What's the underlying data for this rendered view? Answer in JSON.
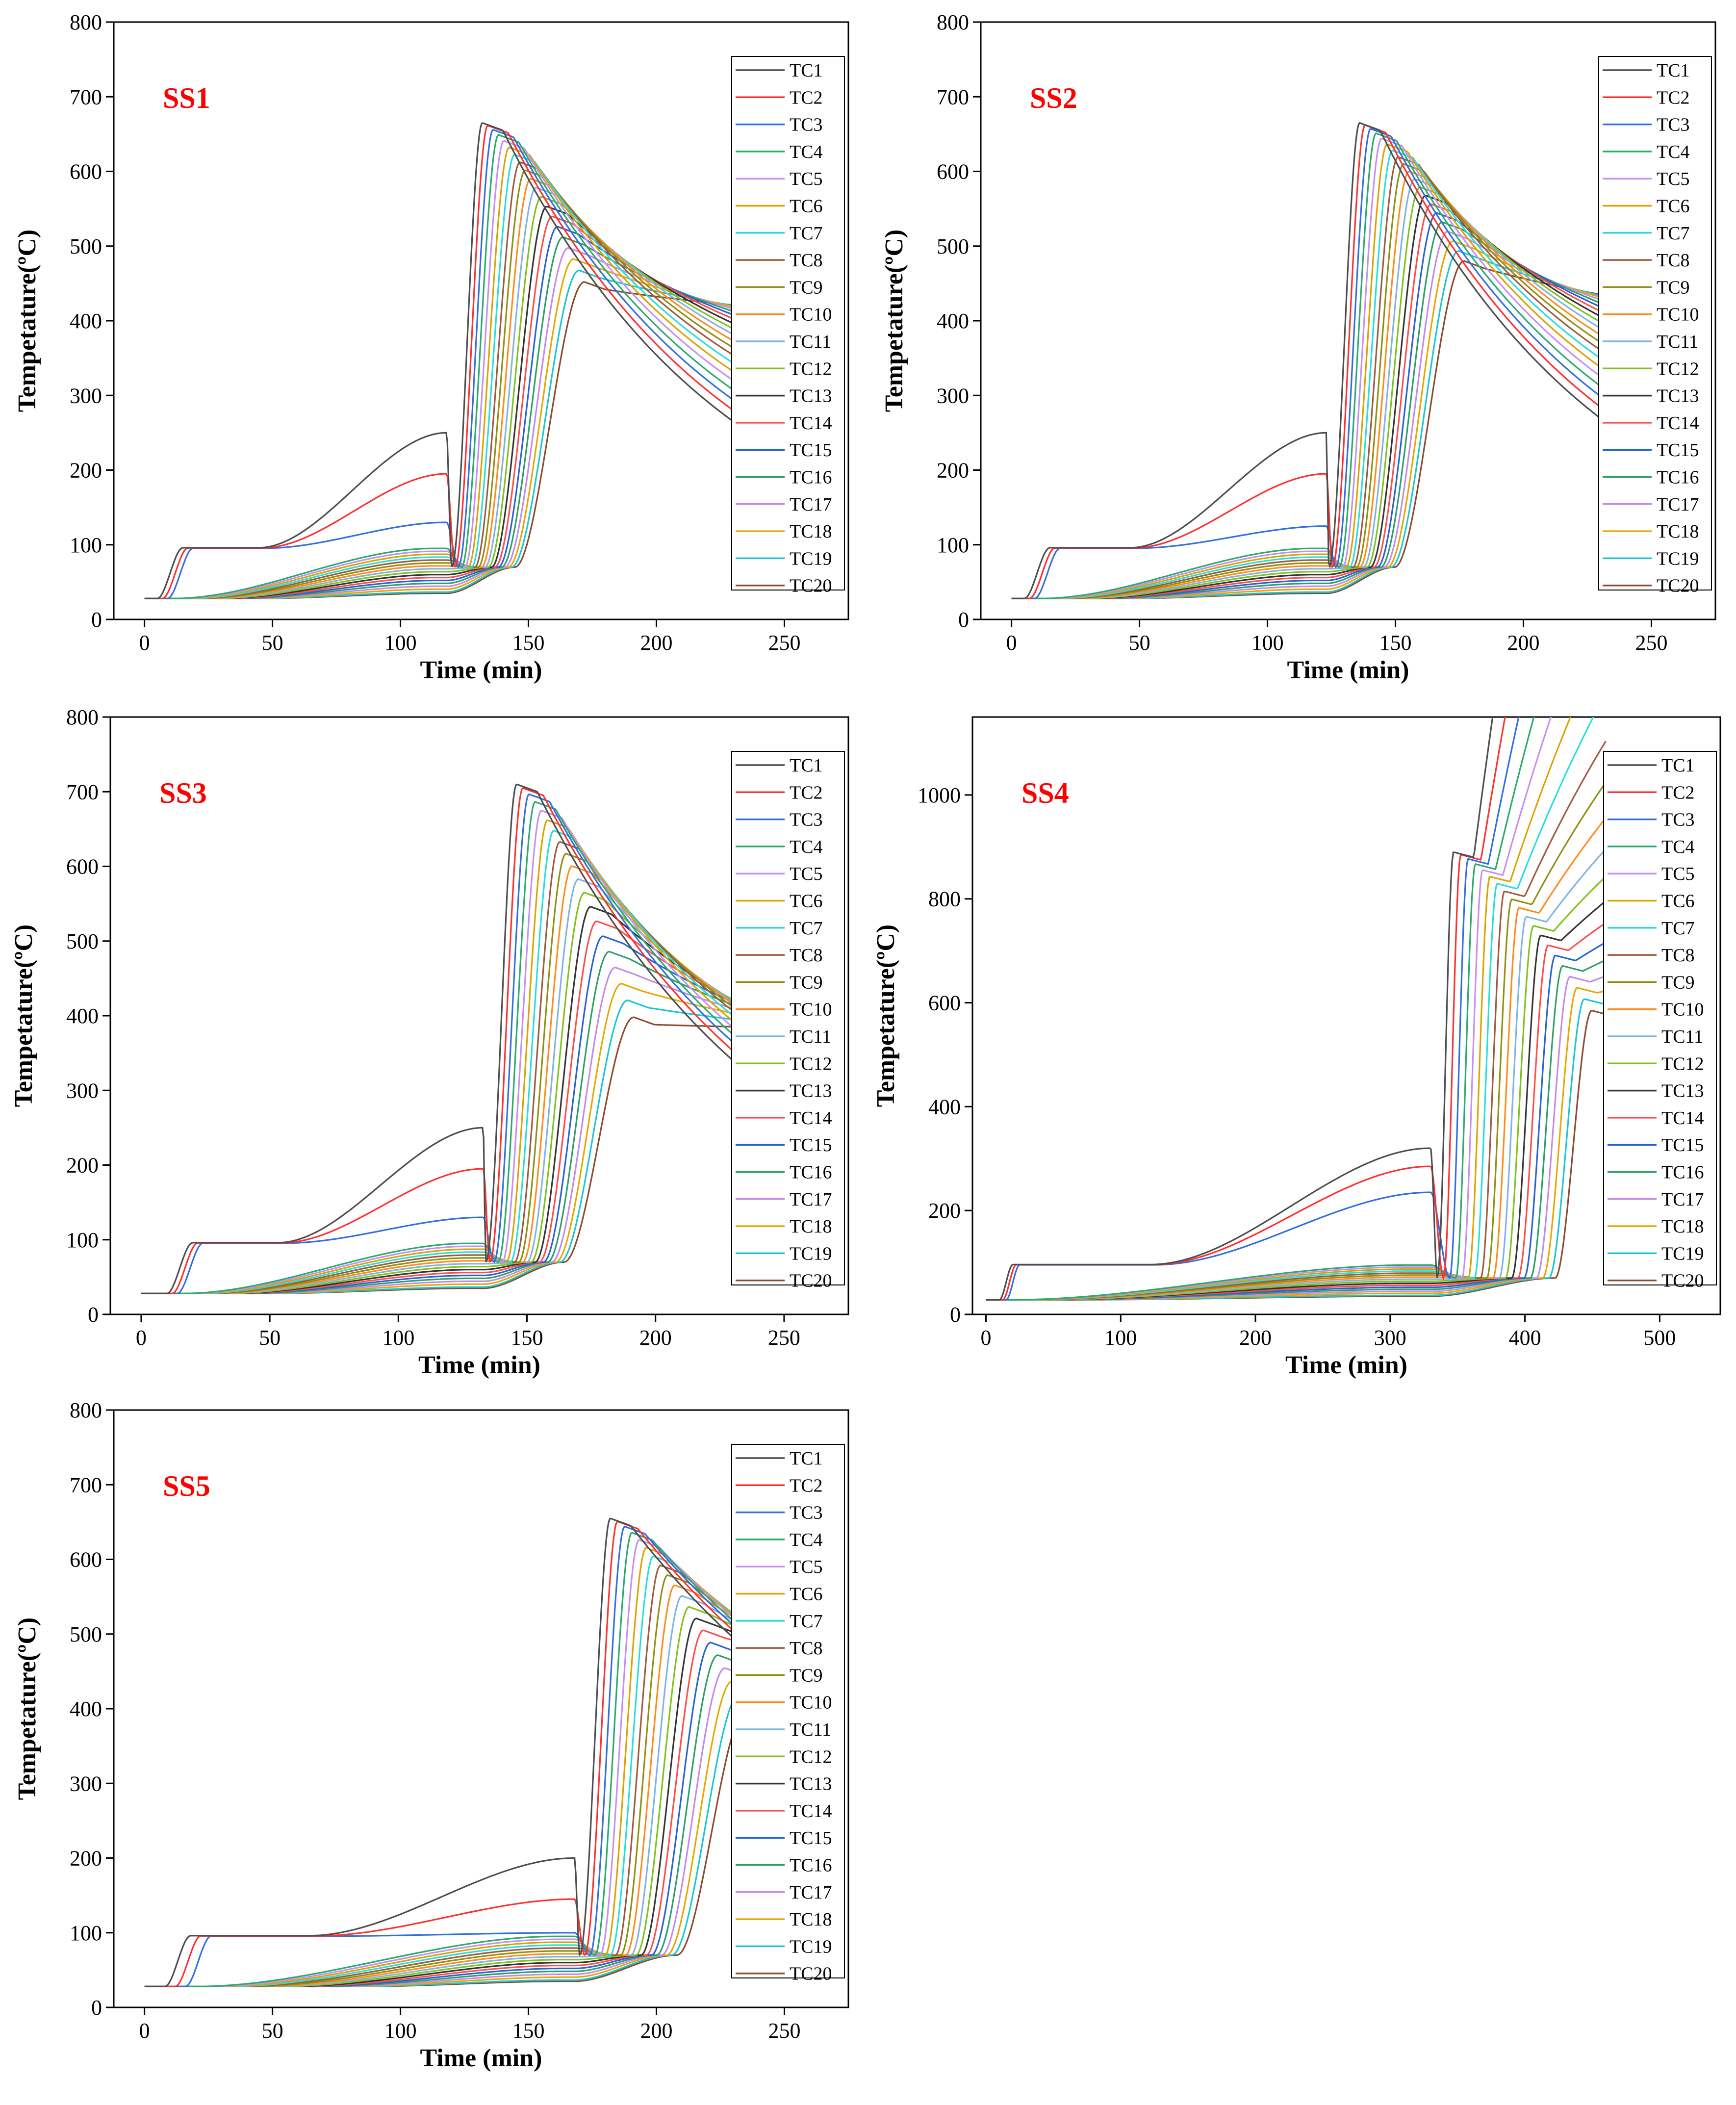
{
  "palette": [
    "#4d4d4d",
    "#ff3030",
    "#2f6fe0",
    "#2bab6b",
    "#c78ff0",
    "#d9a400",
    "#27dede",
    "#9e5a3d",
    "#8f8f10",
    "#ff8c1a",
    "#7fb3e6",
    "#7fc21a",
    "#333333",
    "#ff4d4d",
    "#2463d6",
    "#2f9e66",
    "#c48ae8",
    "#e6a800",
    "#19c6d6",
    "#8c4a2e"
  ],
  "series_names": [
    "TC1",
    "TC2",
    "TC3",
    "TC4",
    "TC5",
    "TC6",
    "TC7",
    "TC8",
    "TC9",
    "TC10",
    "TC11",
    "TC12",
    "TC13",
    "TC14",
    "TC15",
    "TC16",
    "TC17",
    "TC18",
    "TC19",
    "TC20"
  ],
  "chart_data": [
    {
      "id": "SS1",
      "type": "line",
      "panel_label": "SS1",
      "xlabel": "Time (min)",
      "ylabel": "Tempetature(ºC)",
      "xlim": [
        -12,
        275
      ],
      "ylim": [
        0,
        800
      ],
      "xticks": [
        0,
        50,
        100,
        150,
        200,
        250
      ],
      "yticks": [
        0,
        100,
        200,
        300,
        400,
        500,
        600,
        700,
        800
      ],
      "x_end": 232,
      "params": {
        "t_start": 5,
        "t_start_step": 2,
        "t_fire": 118,
        "t_ig0": 120,
        "t_ig_step": 1.3,
        "ramp": 3,
        "peak_first": 665,
        "peak_last": 452,
        "plateau_len": 8,
        "decay_first": 160,
        "decay_last": 190,
        "end_first": 115,
        "end_last": 400,
        "pre_first": 250,
        "pre_second": 195,
        "pre_third": 130
      }
    },
    {
      "id": "SS2",
      "type": "line",
      "panel_label": "SS2",
      "xlabel": "Time (min)",
      "ylabel": "Tempetature(ºC)",
      "xlim": [
        -12,
        275
      ],
      "ylim": [
        0,
        800
      ],
      "xticks": [
        0,
        50,
        100,
        150,
        200,
        250
      ],
      "yticks": [
        0,
        100,
        200,
        300,
        400,
        500,
        600,
        700,
        800
      ],
      "x_end": 232,
      "params": {
        "t_start": 5,
        "t_start_step": 2,
        "t_fire": 123,
        "t_ig0": 124,
        "t_ig_step": 1.35,
        "ramp": 3,
        "peak_first": 665,
        "peak_last": 480,
        "plateau_len": 8,
        "decay_first": 160,
        "decay_last": 190,
        "end_first": 110,
        "end_last": 395,
        "pre_first": 250,
        "pre_second": 195,
        "pre_third": 125
      }
    },
    {
      "id": "SS3",
      "type": "line",
      "panel_label": "SS3",
      "xlabel": "Time (min)",
      "ylabel": "Tempetature(ºC)",
      "xlim": [
        -12,
        275
      ],
      "ylim": [
        0,
        800
      ],
      "xticks": [
        0,
        50,
        100,
        150,
        200,
        250
      ],
      "yticks": [
        0,
        100,
        200,
        300,
        400,
        500,
        600,
        700,
        800
      ],
      "x_end": 232,
      "params": {
        "t_start": 10,
        "t_start_step": 2,
        "t_fire": 133,
        "t_ig0": 134,
        "t_ig_step": 1.6,
        "ramp": 3,
        "peak_first": 710,
        "peak_last": 398,
        "plateau_len": 8,
        "decay_first": 170,
        "decay_last": 205,
        "end_first": 150,
        "end_last": 380,
        "pre_first": 250,
        "pre_second": 195,
        "pre_third": 130
      }
    },
    {
      "id": "SS4",
      "type": "line",
      "panel_label": "SS4",
      "xlabel": "Time (min)",
      "ylabel": "Tempetature(ºC)",
      "xlim": [
        -10,
        545
      ],
      "ylim": [
        0,
        1150
      ],
      "xticks": [
        0,
        100,
        200,
        300,
        400,
        500
      ],
      "yticks": [
        0,
        200,
        400,
        600,
        800,
        1000
      ],
      "x_end": 460,
      "params": {
        "t_start": 10,
        "t_start_step": 2.5,
        "t_fire": 330,
        "t_ig0": 335,
        "t_ig_step": 4.6,
        "ramp": 10,
        "peak_first": 890,
        "peak_last": 585,
        "plateau_len": 15,
        "decay_first": 340,
        "decay_last": 430,
        "end_first": 230,
        "end_last": 540,
        "pre_first": 320,
        "pre_second": 285,
        "pre_third": 235
      }
    },
    {
      "id": "SS5",
      "type": "line",
      "panel_label": "SS5",
      "xlabel": "Time (min)",
      "ylabel": "Tempetature(ºC)",
      "xlim": [
        -12,
        275
      ],
      "ylim": [
        0,
        800
      ],
      "xticks": [
        0,
        50,
        100,
        150,
        200,
        250
      ],
      "yticks": [
        0,
        100,
        200,
        300,
        400,
        500,
        600,
        700,
        800
      ],
      "x_end": 238,
      "params": {
        "t_start": 8,
        "t_start_step": 4,
        "t_fire": 168,
        "t_ig0": 170,
        "t_ig_step": 2.0,
        "ramp": 4,
        "peak_first": 655,
        "peak_last": 400,
        "plateau_len": 8,
        "decay_first": 215,
        "decay_last": 245,
        "end_first": 280,
        "end_last": 490,
        "pre_first": 200,
        "pre_second": 145,
        "pre_third": 100
      }
    }
  ]
}
